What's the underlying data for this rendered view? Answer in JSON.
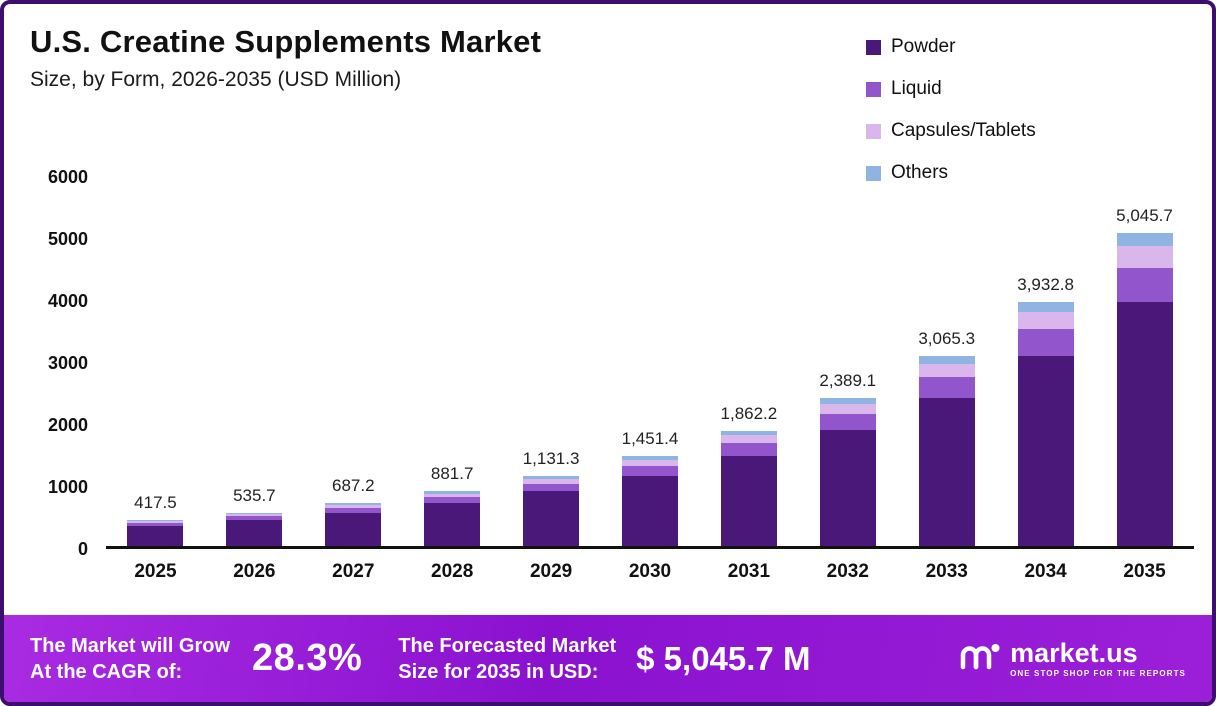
{
  "header": {
    "title": "U.S. Creatine Supplements Market",
    "subtitle": "Size, by Form, 2026-2035 (USD Million)"
  },
  "chart_data": {
    "type": "bar",
    "stacked": true,
    "title": "U.S. Creatine Supplements Market Size, by Form, 2026-2035 (USD Million)",
    "xlabel": "",
    "ylabel": "",
    "ylim": [
      0,
      6000
    ],
    "yticks": [
      0,
      1000,
      2000,
      3000,
      4000,
      5000,
      6000
    ],
    "grid": false,
    "legend_position": "top-right",
    "categories": [
      "2025",
      "2026",
      "2027",
      "2028",
      "2029",
      "2030",
      "2031",
      "2032",
      "2033",
      "2034",
      "2035"
    ],
    "totals": [
      417.5,
      535.7,
      687.2,
      881.7,
      1131.3,
      1451.4,
      1862.2,
      2389.1,
      3065.3,
      3932.8,
      5045.7
    ],
    "total_labels": [
      "417.5",
      "535.7",
      "687.2",
      "881.7",
      "1,131.3",
      "1,451.4",
      "1,862.2",
      "2,389.1",
      "3,065.3",
      "3,932.8",
      "5,045.7"
    ],
    "series": [
      {
        "name": "Powder",
        "color": "#4a1878",
        "values": [
          325.7,
          417.8,
          536.0,
          687.7,
          882.4,
          1132.1,
          1452.5,
          1863.5,
          2390.9,
          3067.6,
          3935.6
        ]
      },
      {
        "name": "Liquid",
        "color": "#9355cc",
        "values": [
          45.9,
          58.9,
          75.6,
          97.0,
          124.4,
          159.7,
          204.8,
          262.8,
          337.2,
          432.6,
          555.0
        ]
      },
      {
        "name": "Capsules/Tablets",
        "color": "#d9b6ec",
        "values": [
          29.2,
          37.5,
          48.1,
          61.7,
          79.2,
          101.6,
          130.4,
          167.2,
          214.6,
          275.3,
          353.3
        ]
      },
      {
        "name": "Others",
        "color": "#8fb4e2",
        "values": [
          16.7,
          21.5,
          27.5,
          35.3,
          45.3,
          58.0,
          74.5,
          95.6,
          122.6,
          157.3,
          201.8
        ]
      }
    ]
  },
  "banner": {
    "cagr_label_line1": "The Market will Grow",
    "cagr_label_line2": "At the CAGR of:",
    "cagr_value": "28.3%",
    "forecast_label_line1": "The Forecasted Market",
    "forecast_label_line2": "Size for 2035 in USD:",
    "forecast_value": "$ 5,045.7 M",
    "logo_text": "market.us",
    "logo_tagline": "One Stop Shop For The Reports"
  },
  "colors": {
    "border": "#3c0e6e",
    "banner_gradient_start": "#a92be2",
    "banner_gradient_end": "#9c1fd8",
    "axis_line": "#111111"
  }
}
